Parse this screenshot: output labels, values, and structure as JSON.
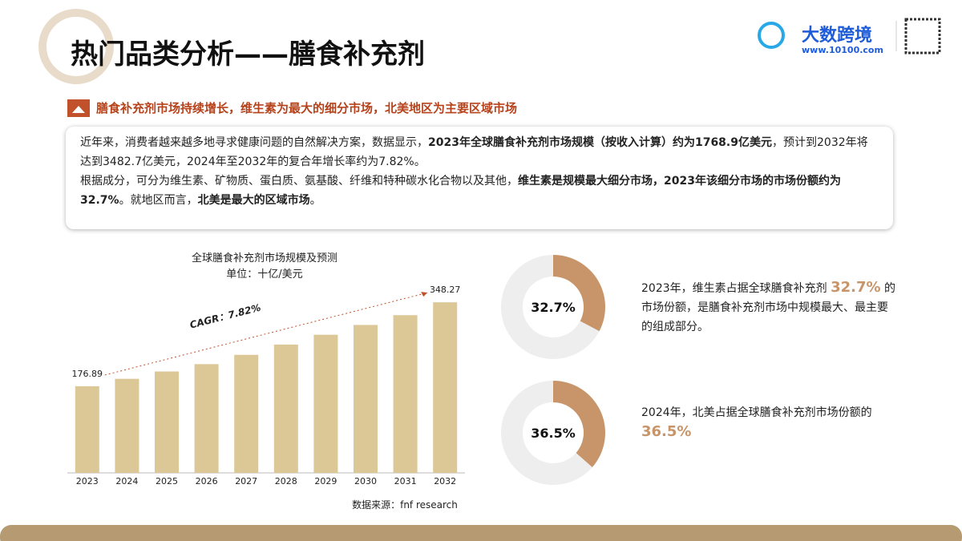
{
  "header": {
    "title": "热门品类分析——膳食补充剂",
    "brand": "大数跨境",
    "url": "www.10100.com"
  },
  "headline": "膳食补充剂市场持续增长，维生素为最大的细分市场，北美地区为主要区域市场",
  "summary": [
    [
      {
        "text": "近年来，消费者越来越多地寻求健康问题的自然解决方案，数据显示，",
        "bold": false
      },
      {
        "text": "2023年全球膳食补充剂市场规模（按收入计算）约为1768.9亿美元",
        "bold": true
      },
      {
        "text": "，预计到2032年将达到3482.7亿美元，2024年至2032年的复合年增长率约为7.82%。",
        "bold": false
      }
    ],
    [
      {
        "text": "根据成分，可分为维生素、矿物质、蛋白质、氨基酸、纤维和特种碳水化合物以及其他，",
        "bold": false
      },
      {
        "text": "维生素是规模最大细分市场，2023年该细分市场的市场份额约为32.7%",
        "bold": true
      },
      {
        "text": "。就地区而言，",
        "bold": false
      },
      {
        "text": "北美是最大的区域市场",
        "bold": true
      },
      {
        "text": "。",
        "bold": false
      }
    ]
  ],
  "notes": [
    {
      "before": "2023年，维生素占据全球膳食补充剂",
      "highlight": "32.7%",
      "after": "的市场份额，是膳食补充剂市场中规模最大、最主要的组成部分。"
    },
    {
      "before": "2024年，北美占据全球膳食补充剂市场份额的",
      "highlight": "36.5%",
      "after": ""
    }
  ],
  "chart_data": [
    {
      "type": "bar",
      "title": "全球膳食补充剂市场规模及预测",
      "subtitle": "单位：十亿/美元",
      "annotation": "CAGR：7.82%",
      "source": "数据来源：fnf research",
      "categories": [
        "2023",
        "2024",
        "2025",
        "2026",
        "2027",
        "2028",
        "2029",
        "2030",
        "2031",
        "2032"
      ],
      "values": [
        176.89,
        192,
        207,
        222,
        241,
        262,
        282,
        302,
        322,
        348.27
      ],
      "color": "#dcc796",
      "ylim": [
        0,
        360
      ]
    },
    {
      "type": "pie",
      "categories": [
        null,
        null
      ],
      "values": [
        32.7,
        67.3
      ],
      "value_labels": [
        "32.7%",
        null
      ],
      "colors": [
        "#c8956a",
        "#eeeeee"
      ]
    },
    {
      "type": "pie",
      "categories": [
        null,
        null
      ],
      "values": [
        36.5,
        63.5
      ],
      "value_labels": [
        "36.5%",
        null
      ],
      "colors": [
        "#c8956a",
        "#eeeeee"
      ]
    }
  ]
}
